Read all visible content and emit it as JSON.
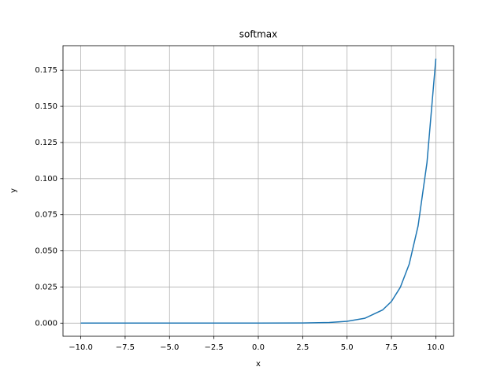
{
  "chart_data": {
    "type": "line",
    "title": "softmax",
    "x_label": "x",
    "y_label": "y",
    "x": [
      -10,
      -7.5,
      -5,
      -2.5,
      0,
      2.5,
      4,
      5,
      6,
      7,
      7.5,
      8,
      8.5,
      9,
      9.5,
      10
    ],
    "series": [
      {
        "color": "#1f77b4",
        "values": [
          0,
          0,
          0,
          0,
          0,
          0.0001,
          0.00045,
          0.00123,
          0.00335,
          0.0091,
          0.015,
          0.0248,
          0.0408,
          0.0673,
          0.111,
          0.183
        ]
      }
    ],
    "xlim": [
      -11,
      11
    ],
    "ylim": [
      -0.0091,
      0.192
    ],
    "xticks": [
      {
        "value": -10,
        "label": "−10.0"
      },
      {
        "value": -7.5,
        "label": "−7.5"
      },
      {
        "value": -5,
        "label": "−5.0"
      },
      {
        "value": -2.5,
        "label": "−2.5"
      },
      {
        "value": 0,
        "label": "0.0"
      },
      2.5,
      {
        "value": 5,
        "label": "5.0"
      },
      7.5,
      {
        "value": 10,
        "label": "10.0"
      }
    ],
    "yticks": [
      {
        "value": 0,
        "label": "0.000"
      },
      0.025,
      {
        "value": 0.05,
        "label": "0.050"
      },
      0.075,
      {
        "value": 0.1,
        "label": "0.100"
      },
      0.125,
      {
        "value": 0.15,
        "label": "0.150"
      },
      0.175
    ],
    "grid": true
  }
}
